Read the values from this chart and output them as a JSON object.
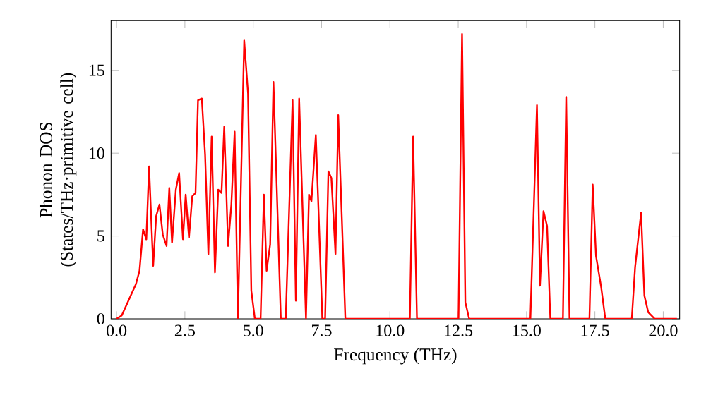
{
  "chart_data": {
    "type": "line",
    "xlabel": "Frequency (THz)",
    "ylabel": "Phonon DOS (States/THz·primitive cell)",
    "color": "#ff0000",
    "x": [
      0,
      0.19,
      0.71,
      0.84,
      0.97,
      1.09,
      1.19,
      1.34,
      1.45,
      1.57,
      1.69,
      1.83,
      1.93,
      2.03,
      2.17,
      2.29,
      2.43,
      2.53,
      2.65,
      2.77,
      2.89,
      2.98,
      3.12,
      3.24,
      3.36,
      3.48,
      3.6,
      3.72,
      3.84,
      3.94,
      4.08,
      4.2,
      4.32,
      4.44,
      4.67,
      4.81,
      4.93,
      5.06,
      5.27,
      5.39,
      5.49,
      5.62,
      5.74,
      6.01,
      6.19,
      6.44,
      6.56,
      6.68,
      6.93,
      7.04,
      7.13,
      7.29,
      7.53,
      7.63,
      7.75,
      7.86,
      8.01,
      8.11,
      8.37,
      10.73,
      10.85,
      10.99,
      12.51,
      12.64,
      12.76,
      12.9,
      15.14,
      15.38,
      15.49,
      15.62,
      15.75,
      15.87,
      16.33,
      16.45,
      16.57,
      17.3,
      17.42,
      17.54,
      17.73,
      17.88,
      18.85,
      18.97,
      19.19,
      19.31,
      19.45,
      19.69,
      20.5
    ],
    "values": [
      0,
      0.2,
      2.1,
      2.9,
      5.4,
      4.8,
      9.2,
      3.2,
      6.2,
      6.9,
      5.1,
      4.4,
      7.9,
      4.6,
      7.8,
      8.8,
      4.8,
      7.5,
      4.9,
      7.4,
      7.6,
      13.2,
      13.3,
      9.9,
      3.9,
      11.0,
      2.8,
      7.8,
      7.6,
      11.6,
      4.4,
      6.9,
      11.3,
      0,
      16.8,
      13.6,
      1.7,
      0,
      0,
      7.5,
      2.9,
      4.5,
      14.3,
      0,
      0,
      13.2,
      1.1,
      13.3,
      0,
      7.5,
      7.1,
      11.1,
      0,
      0,
      8.9,
      8.5,
      3.9,
      12.3,
      0,
      0,
      11.0,
      0,
      0,
      17.2,
      1.0,
      0,
      0,
      12.9,
      2.0,
      6.5,
      5.6,
      0,
      0,
      13.4,
      0,
      0,
      8.1,
      3.8,
      1.9,
      0,
      0,
      3.1,
      6.4,
      1.4,
      0.4,
      0,
      0
    ],
    "xlim": [
      -0.2,
      20.6
    ],
    "ylim": [
      0,
      18
    ],
    "xticks": [
      {
        "value": 0,
        "label": "0.0"
      },
      {
        "value": 2.5,
        "label": "2.5"
      },
      {
        "value": 5,
        "label": "5.0"
      },
      {
        "value": 7.5,
        "label": "7.5"
      },
      {
        "value": 10,
        "label": "10.0"
      },
      {
        "value": 12.5,
        "label": "12.5"
      },
      {
        "value": 15,
        "label": "15.0"
      },
      {
        "value": 17.5,
        "label": "17.5"
      },
      {
        "value": 20,
        "label": "20.0"
      }
    ],
    "yticks": [
      0,
      5,
      10,
      15
    ]
  }
}
